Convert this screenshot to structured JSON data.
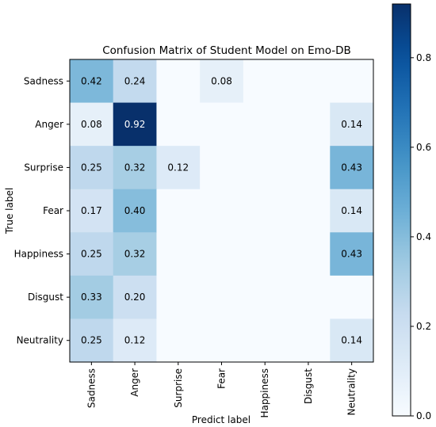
{
  "chart_data": {
    "type": "heatmap",
    "title": "Confusion Matrix of Student Model on Emo-DB",
    "xlabel": "Predict label",
    "ylabel": "True label",
    "x_categories": [
      "Sadness",
      "Anger",
      "Surprise",
      "Fear",
      "Happiness",
      "Disgust",
      "Neutrality"
    ],
    "y_categories": [
      "Sadness",
      "Anger",
      "Surprise",
      "Fear",
      "Happiness",
      "Disgust",
      "Neutrality"
    ],
    "values": [
      [
        0.42,
        0.24,
        null,
        0.08,
        null,
        null,
        null
      ],
      [
        0.08,
        0.92,
        null,
        null,
        null,
        null,
        0.14
      ],
      [
        0.25,
        0.32,
        0.12,
        null,
        null,
        null,
        0.43
      ],
      [
        0.17,
        0.4,
        null,
        null,
        null,
        null,
        0.14
      ],
      [
        0.25,
        0.32,
        null,
        null,
        null,
        null,
        0.43
      ],
      [
        0.33,
        0.2,
        null,
        null,
        null,
        null,
        null
      ],
      [
        0.25,
        0.12,
        null,
        null,
        null,
        null,
        0.14
      ]
    ],
    "value_labels": [
      [
        "0.42",
        "0.24",
        "",
        "0.08",
        "",
        "",
        ""
      ],
      [
        "0.08",
        "0.92",
        "",
        "",
        "",
        "",
        "0.14"
      ],
      [
        "0.25",
        "0.32",
        "0.12",
        "",
        "",
        "",
        "0.43"
      ],
      [
        "0.17",
        "0.40",
        "",
        "",
        "",
        "",
        "0.14"
      ],
      [
        "0.25",
        "0.32",
        "",
        "",
        "",
        "",
        "0.43"
      ],
      [
        "0.33",
        "0.20",
        "",
        "",
        "",
        "",
        ""
      ],
      [
        "0.25",
        "0.12",
        "",
        "",
        "",
        "",
        "0.14"
      ]
    ],
    "colormap": "Blues",
    "colorbar": {
      "range": [
        0.0,
        0.92
      ],
      "ticks": [
        0.0,
        0.2,
        0.4,
        0.6,
        0.8
      ],
      "tick_labels": [
        "0.0",
        "0.2",
        "0.4",
        "0.6",
        "0.8"
      ]
    },
    "text_color_dark": "#000000",
    "text_color_light": "#ffffff",
    "grid": false
  }
}
